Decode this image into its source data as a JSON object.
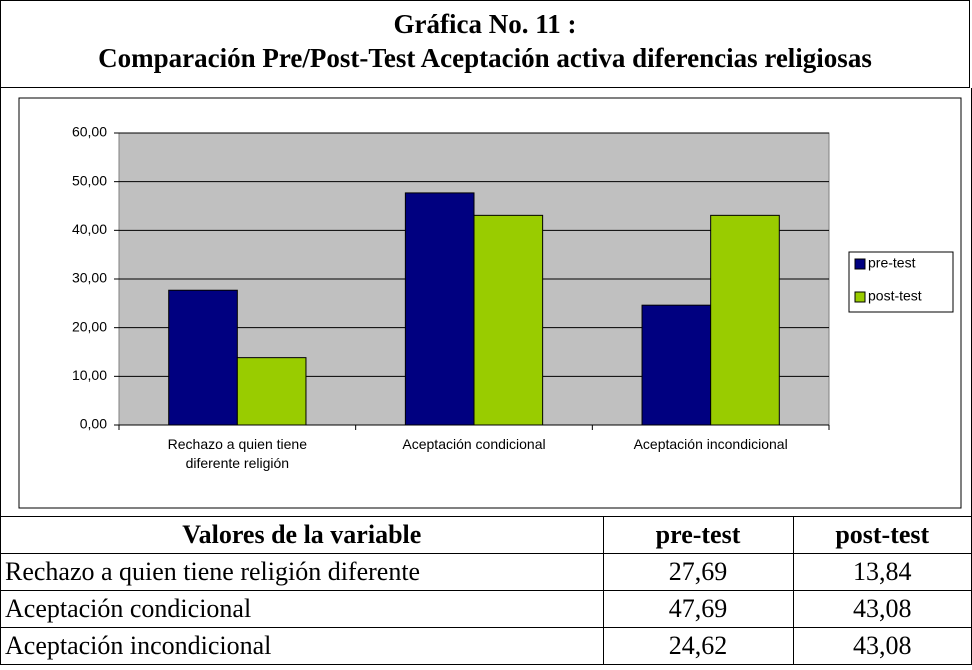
{
  "title": [
    "Gráfica No. 11 :",
    "Comparación Pre/Post-Test Aceptación activa diferencias religiosas"
  ],
  "chart_data": {
    "type": "bar",
    "categories": [
      "Rechazo a quien tiene diferente religión",
      "Aceptación condicional",
      "Aceptación incondicional"
    ],
    "series": [
      {
        "name": "pre-test",
        "color": "#000080",
        "values": [
          27.69,
          47.69,
          24.62
        ]
      },
      {
        "name": "post-test",
        "color": "#99cc00",
        "values": [
          13.84,
          43.08,
          43.08
        ]
      }
    ],
    "ylim": [
      0,
      60
    ],
    "yticks": [
      {
        "value": 0,
        "label": "0,00"
      },
      {
        "value": 10,
        "label": "10,00"
      },
      {
        "value": 20,
        "label": "20,00"
      },
      {
        "value": 30,
        "label": "30,00"
      },
      {
        "value": 40,
        "label": "40,00"
      },
      {
        "value": 50,
        "label": "50,00"
      },
      {
        "value": 60,
        "label": "60,00"
      }
    ],
    "grid": true,
    "legend": "right",
    "plot_background": "#c0c0c0"
  },
  "table": {
    "header": [
      "Valores de la variable",
      "pre-test",
      "post-test"
    ],
    "rows": [
      [
        "Rechazo a quien tiene religión diferente",
        "27,69",
        "13,84"
      ],
      [
        "Aceptación condicional",
        "47,69",
        "43,08"
      ],
      [
        "Aceptación incondicional",
        "24,62",
        "43,08"
      ]
    ]
  }
}
